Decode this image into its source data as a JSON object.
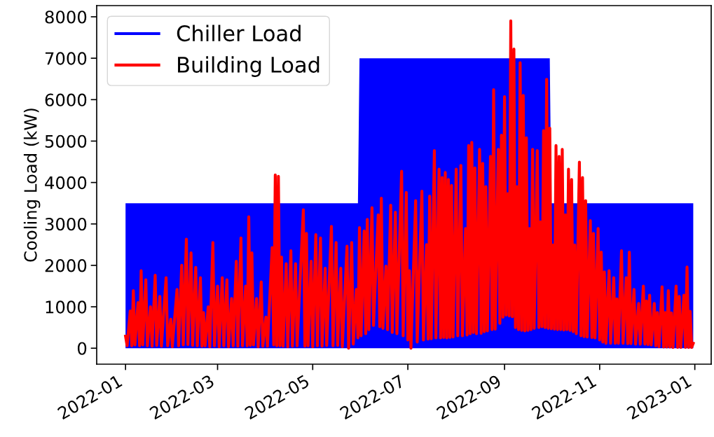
{
  "chart_data": {
    "type": "line",
    "ylabel": "Cooling Load (kW)",
    "xlim": [
      "2021-12-13T12:00",
      "2023-01-11T12:00"
    ],
    "ylim": [
      -385,
      8270
    ],
    "xticks": [
      "2022-01",
      "2022-03",
      "2022-05",
      "2022-07",
      "2022-09",
      "2022-11",
      "2023-01"
    ],
    "yticks": [
      0,
      1000,
      2000,
      3000,
      4000,
      5000,
      6000,
      7000,
      8000
    ],
    "legend": "top left",
    "series": [
      {
        "name": "Chiller Load",
        "type": "area",
        "color": "#0000ff",
        "x": [
          "2022-01-01",
          "2022-05-30",
          "2022-05-31",
          "2022-09-30",
          "2022-10-01",
          "2022-12-31"
        ],
        "values": [
          3500,
          3500,
          7000,
          7000,
          3500,
          3500
        ]
      },
      {
        "name": "Building Load",
        "color": "#ff0000",
        "x": [
          "2022-01-01",
          "2022-01-02",
          "2022-01-04",
          "2022-01-05",
          "2022-01-06",
          "2022-01-07",
          "2022-01-09",
          "2022-01-10",
          "2022-01-11",
          "2022-01-12",
          "2022-01-14",
          "2022-01-15",
          "2022-01-17",
          "2022-01-18",
          "2022-01-20",
          "2022-01-21",
          "2022-01-23",
          "2022-01-24",
          "2022-01-27",
          "2022-01-28",
          "2022-01-30",
          "2022-01-31",
          "2022-02-03",
          "2022-02-04",
          "2022-02-06",
          "2022-02-07",
          "2022-02-09",
          "2022-02-10",
          "2022-02-12",
          "2022-02-13",
          "2022-02-15",
          "2022-02-16",
          "2022-02-18",
          "2022-02-19",
          "2022-02-20",
          "2022-02-21",
          "2022-02-23",
          "2022-02-24",
          "2022-02-26",
          "2022-02-27",
          "2022-03-01",
          "2022-03-02",
          "2022-03-04",
          "2022-03-05",
          "2022-03-07",
          "2022-03-08",
          "2022-03-10",
          "2022-03-11",
          "2022-03-13",
          "2022-03-14",
          "2022-03-16",
          "2022-03-17",
          "2022-03-19",
          "2022-03-20",
          "2022-03-21",
          "2022-03-22",
          "2022-03-23",
          "2022-03-24",
          "2022-03-26",
          "2022-03-27",
          "2022-03-29",
          "2022-03-30",
          "2022-04-01",
          "2022-04-02",
          "2022-04-05",
          "2022-04-06",
          "2022-04-07",
          "2022-04-08",
          "2022-04-09",
          "2022-04-10",
          "2022-04-11",
          "2022-04-12",
          "2022-04-14",
          "2022-04-15",
          "2022-04-17",
          "2022-04-18",
          "2022-04-20",
          "2022-04-21",
          "2022-04-25",
          "2022-04-26",
          "2022-04-27",
          "2022-04-28",
          "2022-04-30",
          "2022-05-01",
          "2022-05-03",
          "2022-05-04",
          "2022-05-06",
          "2022-05-07",
          "2022-05-09",
          "2022-05-10",
          "2022-05-13",
          "2022-05-14",
          "2022-05-16",
          "2022-05-17",
          "2022-05-19",
          "2022-05-20",
          "2022-05-23",
          "2022-05-24",
          "2022-05-26",
          "2022-05-27",
          "2022-05-29",
          "2022-05-30",
          "2022-05-31",
          "2022-06-01",
          "2022-06-03",
          "2022-06-04",
          "2022-06-05",
          "2022-06-06",
          "2022-06-08",
          "2022-06-09",
          "2022-06-12",
          "2022-06-13",
          "2022-06-14",
          "2022-06-15",
          "2022-06-17",
          "2022-06-18",
          "2022-06-20",
          "2022-06-21",
          "2022-06-23",
          "2022-06-24",
          "2022-06-27",
          "2022-06-28",
          "2022-06-30",
          "2022-07-01",
          "2022-07-02",
          "2022-07-03",
          "2022-07-06",
          "2022-07-07",
          "2022-07-10",
          "2022-07-11",
          "2022-07-13",
          "2022-07-14",
          "2022-07-15",
          "2022-07-16",
          "2022-07-18",
          "2022-07-19",
          "2022-07-21",
          "2022-07-22",
          "2022-07-23",
          "2022-07-24",
          "2022-07-25",
          "2022-07-26",
          "2022-07-27",
          "2022-07-28",
          "2022-07-29",
          "2022-07-30",
          "2022-08-01",
          "2022-08-02",
          "2022-08-04",
          "2022-08-05",
          "2022-08-07",
          "2022-08-08",
          "2022-08-09",
          "2022-08-10",
          "2022-08-11",
          "2022-08-12",
          "2022-08-13",
          "2022-08-14",
          "2022-08-16",
          "2022-08-17",
          "2022-08-18",
          "2022-08-19",
          "2022-08-20",
          "2022-08-21",
          "2022-08-23",
          "2022-08-24",
          "2022-08-25",
          "2022-08-26",
          "2022-08-28",
          "2022-08-29",
          "2022-08-30",
          "2022-08-31",
          "2022-09-01",
          "2022-09-02",
          "2022-09-03",
          "2022-09-04",
          "2022-09-05",
          "2022-09-06",
          "2022-09-07",
          "2022-09-08",
          "2022-09-09",
          "2022-09-10",
          "2022-09-11",
          "2022-09-12",
          "2022-09-13",
          "2022-09-14",
          "2022-09-15",
          "2022-09-16",
          "2022-09-17",
          "2022-09-18",
          "2022-09-19",
          "2022-09-20",
          "2022-09-22",
          "2022-09-23",
          "2022-09-24",
          "2022-09-25",
          "2022-09-26",
          "2022-09-27",
          "2022-09-28",
          "2022-09-29",
          "2022-09-30",
          "2022-10-01",
          "2022-10-02",
          "2022-10-03",
          "2022-10-04",
          "2022-10-05",
          "2022-10-06",
          "2022-10-07",
          "2022-10-08",
          "2022-10-09",
          "2022-10-10",
          "2022-10-11",
          "2022-10-12",
          "2022-10-13",
          "2022-10-14",
          "2022-10-15",
          "2022-10-16",
          "2022-10-17",
          "2022-10-19",
          "2022-10-20",
          "2022-10-21",
          "2022-10-22",
          "2022-10-23",
          "2022-10-24",
          "2022-10-26",
          "2022-10-27",
          "2022-10-28",
          "2022-10-29",
          "2022-10-31",
          "2022-11-01",
          "2022-11-02",
          "2022-11-03",
          "2022-11-04",
          "2022-11-05",
          "2022-11-07",
          "2022-11-08",
          "2022-11-10",
          "2022-11-11",
          "2022-11-12",
          "2022-11-13",
          "2022-11-15",
          "2022-11-16",
          "2022-11-18",
          "2022-11-19",
          "2022-11-20",
          "2022-11-21",
          "2022-11-23",
          "2022-11-24",
          "2022-11-26",
          "2022-11-27",
          "2022-11-29",
          "2022-11-30",
          "2022-12-01",
          "2022-12-02",
          "2022-12-03",
          "2022-12-04",
          "2022-12-06",
          "2022-12-07",
          "2022-12-08",
          "2022-12-09",
          "2022-12-11",
          "2022-12-12",
          "2022-12-13",
          "2022-12-14",
          "2022-12-15",
          "2022-12-16",
          "2022-12-17",
          "2022-12-18",
          "2022-12-20",
          "2022-12-21",
          "2022-12-22",
          "2022-12-23",
          "2022-12-25",
          "2022-12-26",
          "2022-12-27",
          "2022-12-28",
          "2022-12-29",
          "2022-12-30",
          "2022-12-31"
        ],
        "values": [
          290,
          60,
          900,
          60,
          1390,
          80,
          1100,
          60,
          1870,
          80,
          1650,
          60,
          1000,
          50,
          1760,
          70,
          1250,
          50,
          1700,
          60,
          700,
          40,
          1420,
          60,
          2000,
          80,
          2630,
          90,
          2300,
          70,
          1950,
          60,
          1700,
          50,
          860,
          60,
          1000,
          40,
          2550,
          60,
          1500,
          40,
          1700,
          60,
          1650,
          40,
          1200,
          60,
          2100,
          50,
          2660,
          60,
          1500,
          60,
          3170,
          70,
          2300,
          80,
          1200,
          40,
          1600,
          50,
          750,
          50,
          2430,
          80,
          4180,
          60,
          4150,
          60,
          2200,
          50,
          2040,
          40,
          2350,
          50,
          2040,
          60,
          3340,
          50,
          2770,
          60,
          2100,
          40,
          2740,
          60,
          2660,
          50,
          1930,
          70,
          2940,
          60,
          2550,
          70,
          1930,
          40,
          2460,
          0,
          2550,
          100,
          1420,
          250,
          2910,
          300,
          2830,
          350,
          3110,
          450,
          3390,
          550,
          3220,
          520,
          3620,
          480,
          1980,
          450,
          3450,
          380,
          3280,
          350,
          4270,
          300,
          3760,
          200,
          1870,
          0,
          3560,
          150,
          3790,
          200,
          2500,
          220,
          3670,
          230,
          4770,
          250,
          4320,
          250,
          4120,
          260,
          4240,
          250,
          4070,
          260,
          3930,
          270,
          4320,
          300,
          4410,
          300,
          2890,
          320,
          4890,
          350,
          4970,
          380,
          4350,
          350,
          4800,
          360,
          4460,
          400,
          3900,
          420,
          4630,
          450,
          6240,
          460,
          4800,
          600,
          5140,
          750,
          6070,
          800,
          3730,
          780,
          7900,
          760,
          7220,
          500,
          3900,
          450,
          6890,
          430,
          6100,
          420,
          5080,
          430,
          2890,
          450,
          4800,
          480,
          4770,
          500,
          3050,
          520,
          5250,
          500,
          6490,
          480,
          5310,
          470,
          2490,
          460,
          4890,
          450,
          4630,
          450,
          4800,
          440,
          3220,
          450,
          4320,
          430,
          4070,
          400,
          2490,
          350,
          4490,
          300,
          4120,
          280,
          3560,
          270,
          3080,
          260,
          2770,
          250,
          2890,
          200,
          2320,
          150,
          1840,
          120,
          1870,
          120,
          1700,
          120,
          1190,
          120,
          2350,
          120,
          1700,
          110,
          2320,
          110,
          1420,
          100,
          1080,
          100,
          1500,
          100,
          1140,
          90,
          1280,
          80,
          1080,
          60,
          860,
          40,
          1480,
          30,
          860,
          30,
          1390,
          30,
          850,
          20,
          1500,
          20,
          1250,
          20,
          1280,
          20,
          1960,
          20,
          890,
          20,
          120
        ]
      }
    ]
  }
}
